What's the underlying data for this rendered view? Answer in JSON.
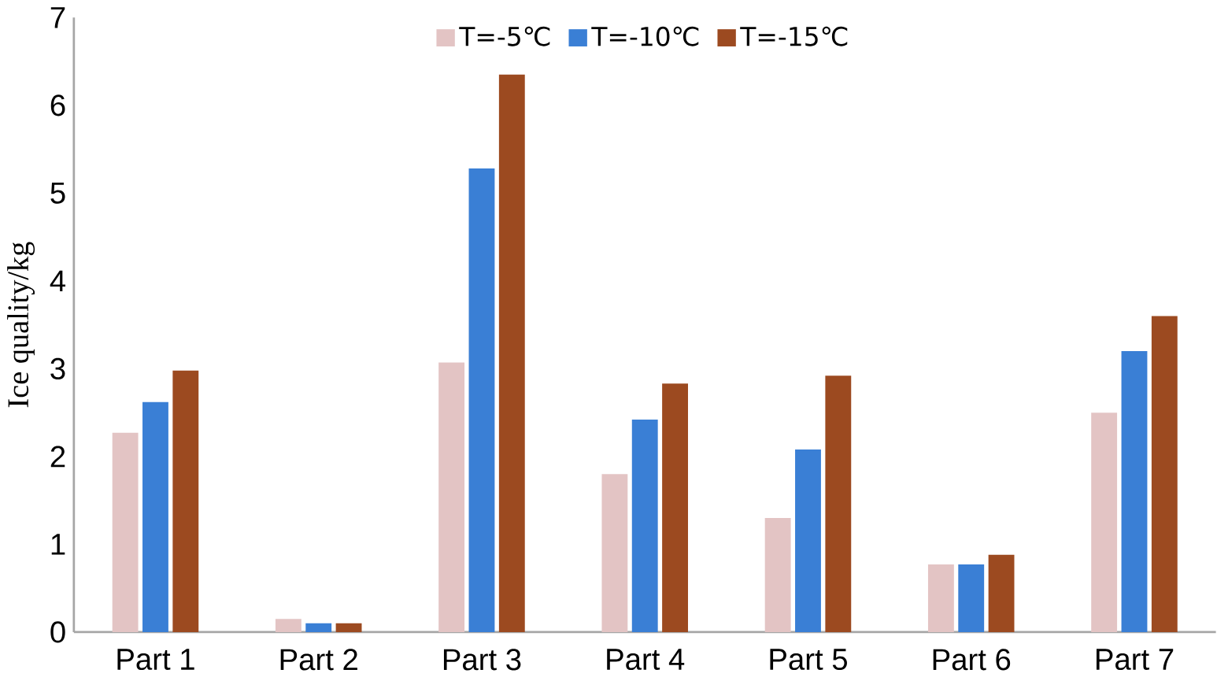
{
  "chart_data": {
    "type": "bar",
    "ylabel": "Ice quality/kg",
    "categories": [
      "Part 1",
      "Part 2",
      "Part 3",
      "Part 4",
      "Part 5",
      "Part 6",
      "Part 7"
    ],
    "series": [
      {
        "name": "T=-5℃",
        "color": "#e3c4c4",
        "values": [
          2.27,
          0.15,
          3.07,
          1.8,
          1.3,
          0.77,
          2.5
        ]
      },
      {
        "name": "T=-10℃",
        "color": "#3a7fd5",
        "values": [
          2.62,
          0.1,
          5.28,
          2.42,
          2.08,
          0.77,
          3.2
        ]
      },
      {
        "name": "T=-15℃",
        "color": "#9c4a20",
        "values": [
          2.98,
          0.1,
          6.35,
          2.83,
          2.92,
          0.88,
          3.6
        ]
      }
    ],
    "ylim": [
      0,
      7
    ],
    "yticks": [
      0,
      1,
      2,
      3,
      4,
      5,
      6,
      7
    ],
    "grid": false,
    "legend": "top"
  }
}
